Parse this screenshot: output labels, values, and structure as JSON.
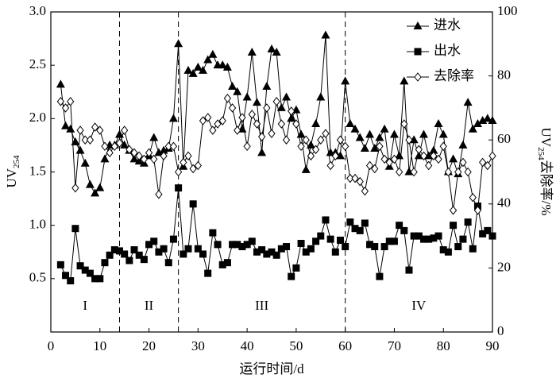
{
  "chart_data": {
    "type": "line",
    "x": [
      2,
      3,
      4,
      5,
      6,
      7,
      8,
      9,
      10,
      11,
      12,
      13,
      14,
      15,
      16,
      17,
      18,
      19,
      20,
      21,
      22,
      23,
      24,
      25,
      26,
      27,
      28,
      29,
      30,
      31,
      32,
      33,
      34,
      35,
      36,
      37,
      38,
      39,
      40,
      41,
      42,
      43,
      44,
      45,
      46,
      47,
      48,
      49,
      50,
      51,
      52,
      53,
      54,
      55,
      56,
      57,
      58,
      59,
      60,
      61,
      62,
      63,
      64,
      65,
      66,
      67,
      68,
      69,
      70,
      71,
      72,
      73,
      74,
      75,
      76,
      77,
      78,
      79,
      80,
      81,
      82,
      83,
      84,
      85,
      86,
      87,
      88,
      89,
      90
    ],
    "series": [
      {
        "name": "进水",
        "color": "#000000",
        "marker": "triangle",
        "axis": "y",
        "values": [
          2.32,
          1.93,
          1.9,
          1.78,
          1.7,
          1.58,
          1.38,
          1.3,
          1.35,
          1.62,
          1.75,
          1.75,
          1.85,
          1.75,
          1.7,
          1.62,
          1.6,
          1.58,
          1.65,
          1.82,
          1.68,
          1.7,
          1.72,
          2.0,
          2.7,
          1.55,
          2.45,
          2.42,
          2.48,
          2.45,
          2.55,
          2.6,
          2.5,
          2.5,
          2.48,
          2.3,
          2.25,
          1.9,
          2.2,
          2.62,
          2.15,
          1.68,
          2.3,
          2.65,
          2.62,
          2.1,
          2.2,
          2.0,
          2.08,
          1.85,
          1.52,
          1.75,
          1.95,
          2.2,
          2.78,
          1.68,
          1.68,
          1.65,
          2.35,
          1.95,
          1.9,
          1.82,
          1.72,
          1.85,
          1.72,
          1.82,
          1.9,
          1.55,
          1.85,
          1.65,
          2.35,
          1.5,
          1.8,
          1.65,
          1.85,
          1.65,
          1.7,
          1.95,
          1.85,
          1.5,
          1.62,
          1.48,
          1.75,
          2.15,
          1.9,
          1.95,
          1.98,
          2.0,
          1.98
        ]
      },
      {
        "name": "出水",
        "color": "#000000",
        "marker": "square",
        "axis": "y",
        "values": [
          0.63,
          0.53,
          0.48,
          0.97,
          0.62,
          0.58,
          0.55,
          0.5,
          0.5,
          0.65,
          0.72,
          0.77,
          0.76,
          0.73,
          0.67,
          0.77,
          0.72,
          0.68,
          0.82,
          0.85,
          0.75,
          0.78,
          0.65,
          0.87,
          1.35,
          0.73,
          0.78,
          1.2,
          0.78,
          0.73,
          0.55,
          0.93,
          0.82,
          0.63,
          0.65,
          0.82,
          0.82,
          0.8,
          0.82,
          0.85,
          0.75,
          0.77,
          0.73,
          0.75,
          0.72,
          0.78,
          0.8,
          0.52,
          0.6,
          0.83,
          0.75,
          0.78,
          0.85,
          0.9,
          1.05,
          0.87,
          0.75,
          0.86,
          0.8,
          1.03,
          0.97,
          0.95,
          1.02,
          0.82,
          0.8,
          0.52,
          0.8,
          0.85,
          0.85,
          1.0,
          0.95,
          0.58,
          0.9,
          0.9,
          0.87,
          0.87,
          0.88,
          0.9,
          0.77,
          0.75,
          1.0,
          0.8,
          0.87,
          1.03,
          0.78,
          1.18,
          0.92,
          0.95,
          0.9
        ]
      },
      {
        "name": "去除率",
        "color": "#000000",
        "marker": "diamond",
        "axis": "y2",
        "values": [
          72,
          70,
          72,
          45,
          63,
          60,
          60,
          64,
          63,
          58,
          56,
          58,
          59,
          63,
          57,
          56,
          55,
          54,
          56,
          54,
          43,
          55,
          58,
          58,
          50,
          53,
          55,
          51,
          52,
          66,
          67,
          63,
          65,
          66,
          73,
          70,
          63,
          67,
          58,
          68,
          65,
          61,
          70,
          62,
          72,
          65,
          60,
          69,
          65,
          58,
          60,
          55,
          57,
          60,
          62,
          52,
          55,
          60,
          58,
          48,
          48,
          47,
          44,
          52,
          51,
          58,
          54,
          53,
          54,
          50,
          65,
          60,
          50,
          57,
          55,
          52,
          55,
          54,
          58,
          50,
          38,
          50,
          53,
          50,
          42,
          38,
          53,
          52,
          55
        ]
      }
    ],
    "xlabel": "运行时间/d",
    "ylabel": {
      "main": "UV",
      "sub": "254"
    },
    "y2label": {
      "main": "UV",
      "sub": "254",
      "rest": "去除率/%"
    },
    "xlim": [
      0,
      90
    ],
    "xticks": [
      0,
      10,
      20,
      30,
      40,
      50,
      60,
      70,
      80,
      90
    ],
    "ylim": [
      0,
      3
    ],
    "yticks": [
      0.5,
      {
        "value": 1,
        "label": "1.0"
      },
      1.5,
      {
        "value": 2,
        "label": "2.0"
      },
      2.5,
      {
        "value": 3,
        "label": "3.0"
      }
    ],
    "y2lim": [
      0,
      100
    ],
    "y2ticks": [
      0,
      20,
      40,
      60,
      80,
      100
    ],
    "dividers": [
      14,
      26,
      60
    ],
    "phases": [
      "I",
      "II",
      "III",
      "IV"
    ],
    "legend": "upper right"
  }
}
